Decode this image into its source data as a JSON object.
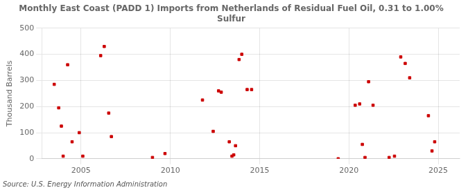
{
  "chart_data": {
    "type": "scatter",
    "title": "Monthly East Coast (PADD 1) Imports from Netherlands of Residual Fuel Oil, 0.31 to 1.00%\nSulfur",
    "ylabel": "Thousand Barrels",
    "annotations": [
      "Source: U.S. Energy Information Administration"
    ],
    "color": "#cc0000",
    "marker": "square",
    "grid": true,
    "xlim": [
      2002.8,
      2026.2
    ],
    "ylim": [
      0,
      500
    ],
    "xticks": [
      2005,
      2010,
      2015,
      2020,
      2025
    ],
    "yticks": [
      0,
      100,
      200,
      300,
      400,
      500
    ],
    "x": [
      2003.5,
      2003.75,
      2003.9,
      2004.0,
      2004.25,
      2004.5,
      2004.9,
      2005.1,
      2006.1,
      2006.3,
      2006.55,
      2006.7,
      2009.0,
      2009.7,
      2011.8,
      2012.4,
      2012.7,
      2012.85,
      2013.3,
      2013.45,
      2013.55,
      2013.65,
      2013.85,
      2014.0,
      2014.3,
      2014.55,
      2019.4,
      2020.35,
      2020.6,
      2020.75,
      2020.9,
      2021.1,
      2021.35,
      2022.25,
      2022.55,
      2022.9,
      2023.15,
      2023.4,
      2024.45,
      2024.65,
      2024.8
    ],
    "values": [
      285,
      195,
      125,
      10,
      360,
      65,
      100,
      10,
      395,
      430,
      175,
      85,
      5,
      20,
      225,
      105,
      260,
      255,
      65,
      10,
      15,
      50,
      380,
      400,
      265,
      265,
      0,
      205,
      210,
      55,
      5,
      295,
      205,
      5,
      10,
      390,
      365,
      310,
      165,
      30,
      65
    ]
  }
}
